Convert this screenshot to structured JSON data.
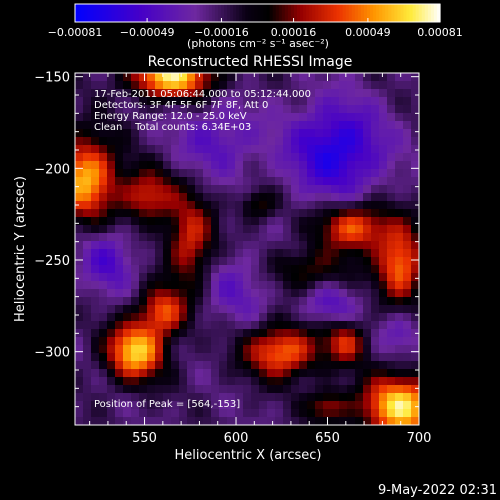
{
  "chart_data": {
    "type": "heatmap",
    "title": "Reconstructed RHESSI Image",
    "xlabel": "Heliocentric X (arcsec)",
    "ylabel": "Heliocentric Y (arcsec)",
    "xlim": [
      512,
      700
    ],
    "ylim": [
      -340,
      -148
    ],
    "x_ticks": [
      "550",
      "600",
      "650",
      "700"
    ],
    "y_ticks": [
      "-150",
      "-200",
      "-250",
      "-300"
    ],
    "colorbar": {
      "range": [
        -0.00081,
        0.00081
      ],
      "tick_labels": [
        "-0.00081",
        "-0.00049",
        "-0.00016",
        "0.00016",
        "0.00049",
        "0.00081"
      ],
      "units": "(photons cm⁻² s⁻¹ asec⁻²)",
      "colormap": "rhessi-blue-to-white"
    },
    "annotations": [
      "17-Feb-2011 05:06:44.000 to 05:12:44.000",
      "Detectors: 3F 4F 5F 6F 7F 8F, Att 0",
      "Energy Range: 12.0 - 25.0 keV",
      "Clean    Total counts: 6.34E+03"
    ],
    "peak_label": "Position of Peak = [564,-153]",
    "blobs": [
      {
        "x": 565,
        "y": -150,
        "amp": 0.00085,
        "sx": 16,
        "sy": 8
      },
      {
        "x": 518,
        "y": -205,
        "amp": 0.00075,
        "sx": 12,
        "sy": 16
      },
      {
        "x": 552,
        "y": -215,
        "amp": 0.0005,
        "sx": 10,
        "sy": 10
      },
      {
        "x": 575,
        "y": -240,
        "amp": 0.0005,
        "sx": 9,
        "sy": 18
      },
      {
        "x": 560,
        "y": -278,
        "amp": 0.00055,
        "sx": 9,
        "sy": 9
      },
      {
        "x": 545,
        "y": -300,
        "amp": 0.0008,
        "sx": 11,
        "sy": 11
      },
      {
        "x": 612,
        "y": -220,
        "amp": 0.0003,
        "sx": 7,
        "sy": 6
      },
      {
        "x": 665,
        "y": -232,
        "amp": 0.0006,
        "sx": 14,
        "sy": 9
      },
      {
        "x": 690,
        "y": -252,
        "amp": 0.00065,
        "sx": 9,
        "sy": 14
      },
      {
        "x": 640,
        "y": -255,
        "amp": 0.0003,
        "sx": 15,
        "sy": 8
      },
      {
        "x": 625,
        "y": -300,
        "amp": 0.00065,
        "sx": 14,
        "sy": 10
      },
      {
        "x": 660,
        "y": -295,
        "amp": 0.00045,
        "sx": 8,
        "sy": 8
      },
      {
        "x": 690,
        "y": -330,
        "amp": 0.00085,
        "sx": 15,
        "sy": 12
      },
      {
        "x": 650,
        "y": -330,
        "amp": 0.0004,
        "sx": 8,
        "sy": 6
      },
      {
        "x": 655,
        "y": -190,
        "amp": -0.0005,
        "sx": 18,
        "sy": 18
      },
      {
        "x": 590,
        "y": -185,
        "amp": -0.00025,
        "sx": 16,
        "sy": 14
      },
      {
        "x": 600,
        "y": -265,
        "amp": -0.0002,
        "sx": 14,
        "sy": 14
      },
      {
        "x": 650,
        "y": -275,
        "amp": -0.00025,
        "sx": 10,
        "sy": 8
      },
      {
        "x": 530,
        "y": -250,
        "amp": -0.0003,
        "sx": 10,
        "sy": 12
      },
      {
        "x": 690,
        "y": -290,
        "amp": -0.0002,
        "sx": 8,
        "sy": 8
      }
    ]
  },
  "footer": {
    "date": "9-May-2022 02:31"
  }
}
